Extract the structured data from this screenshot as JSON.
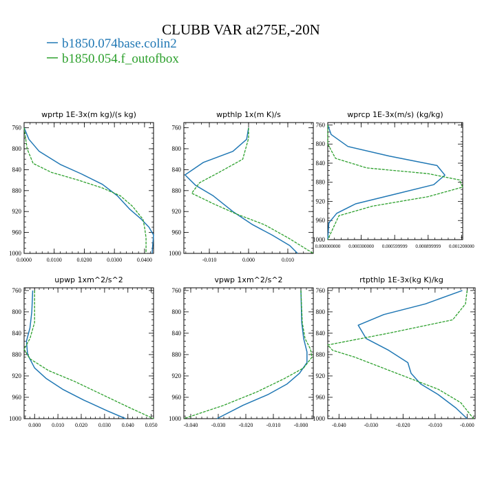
{
  "figure": {
    "title": "CLUBB VAR at275E,-20N",
    "legend_placement": "top-left",
    "legend": [
      {
        "label": "b1850.074base.colin2",
        "color": "#1f77b4"
      },
      {
        "label": "b1850.054.f_outofbox",
        "color": "#2ca02c"
      }
    ]
  },
  "chart_data": [
    {
      "type": "line",
      "title": "wprtp  1E-3x(m kg)/(s kg)",
      "xlim": [
        0.0,
        0.043
      ],
      "ylim": [
        1000,
        750
      ],
      "xticks": [
        0.0,
        0.01,
        0.02,
        0.03,
        0.04
      ],
      "xtick_labels": [
        "0.0000",
        "0.0100",
        "0.0200",
        "0.0300",
        "0.0400"
      ],
      "yticks": [
        760,
        800,
        840,
        880,
        920,
        960,
        1000
      ],
      "grid": false,
      "series": [
        {
          "name": "b1850.074base.colin2",
          "color": "#1f77b4",
          "dashed": false,
          "x": [
            0.0,
            0.0016,
            0.005,
            0.012,
            0.019,
            0.026,
            0.031,
            0.035,
            0.039,
            0.0415,
            0.043,
            0.0425
          ],
          "y": [
            760,
            782,
            805,
            830,
            848,
            868,
            890,
            915,
            935,
            950,
            965,
            1000
          ]
        },
        {
          "name": "b1850.054.f_outofbox",
          "color": "#2ca02c",
          "dashed": true,
          "x": [
            0.0,
            0.001,
            0.003,
            0.009,
            0.018,
            0.026,
            0.032,
            0.036,
            0.0395,
            0.04,
            0.0405,
            0.0405
          ],
          "y": [
            760,
            800,
            828,
            845,
            860,
            875,
            890,
            910,
            935,
            950,
            970,
            1000
          ]
        }
      ]
    },
    {
      "type": "line",
      "title": "wpthlp  1x(m K)/s",
      "xlim": [
        -0.0165,
        0.0165
      ],
      "ylim": [
        1000,
        750
      ],
      "xticks": [
        -0.01,
        0.0,
        0.01
      ],
      "xtick_labels": [
        "-0.010",
        "0.000",
        "0.010"
      ],
      "yticks": [
        760,
        800,
        840,
        880,
        920,
        960,
        1000
      ],
      "grid": false,
      "series": [
        {
          "name": "b1850.074base.colin2",
          "color": "#1f77b4",
          "dashed": false,
          "x": [
            0.0,
            -0.0005,
            -0.004,
            -0.0115,
            -0.0162,
            -0.0135,
            -0.009,
            -0.004,
            0.001,
            0.006,
            0.0105,
            0.0125
          ],
          "y": [
            760,
            782,
            805,
            826,
            850,
            870,
            890,
            920,
            945,
            965,
            985,
            1000
          ]
        },
        {
          "name": "b1850.054.f_outofbox",
          "color": "#2ca02c",
          "dashed": true,
          "x": [
            0.0,
            0.0,
            -0.0015,
            -0.0075,
            -0.0125,
            -0.0145,
            -0.009,
            -0.003,
            0.004,
            0.01,
            0.0165
          ],
          "y": [
            760,
            780,
            820,
            845,
            865,
            885,
            905,
            925,
            945,
            970,
            1000
          ]
        }
      ]
    },
    {
      "type": "line",
      "title": "wprcp  1E-3x(m/s) (kg/kg)",
      "xlim": [
        0.0,
        0.00121
      ],
      "ylim": [
        1000,
        755
      ],
      "xticks": [
        0.0,
        0.0003,
        0.0006,
        0.0009,
        0.0012
      ],
      "xtick_labels": [
        "0.000000000",
        "0.000300000",
        "0.000599999",
        "0.000899999",
        "0.001200000"
      ],
      "yticks": [
        760,
        800,
        840,
        880,
        920,
        960,
        1000
      ],
      "grid": false,
      "series": [
        {
          "name": "b1850.074base.colin2",
          "color": "#1f77b4",
          "dashed": false,
          "x": [
            0.0,
            3e-05,
            0.00018,
            0.00055,
            0.00098,
            0.00105,
            0.00095,
            0.0006,
            0.00025,
            8e-05,
            1e-05,
            0.0
          ],
          "y": [
            760,
            780,
            805,
            825,
            845,
            865,
            885,
            905,
            925,
            945,
            965,
            1000
          ]
        },
        {
          "name": "b1850.054.f_outofbox",
          "color": "#2ca02c",
          "dashed": true,
          "x": [
            0.0,
            0.0,
            7e-05,
            0.00035,
            0.0009,
            0.00118,
            0.00121,
            0.0009,
            0.0004,
            0.0001,
            0.0
          ],
          "y": [
            760,
            800,
            830,
            850,
            862,
            875,
            890,
            910,
            930,
            950,
            1000
          ]
        }
      ]
    },
    {
      "type": "line",
      "title": "upwp  1xm^2/s^2",
      "xlim": [
        -0.0045,
        0.051
      ],
      "ylim": [
        1000,
        755
      ],
      "xticks": [
        0.0,
        0.01,
        0.02,
        0.03,
        0.04,
        0.05
      ],
      "xtick_labels": [
        "0.000",
        "0.010",
        "0.020",
        "0.030",
        "0.040",
        "0.050"
      ],
      "yticks": [
        760,
        800,
        840,
        880,
        920,
        960,
        1000
      ],
      "grid": false,
      "series": [
        {
          "name": "b1850.074base.colin2",
          "color": "#1f77b4",
          "dashed": false,
          "x": [
            -0.0008,
            -0.0012,
            -0.002,
            -0.0035,
            -0.003,
            0.0,
            0.005,
            0.012,
            0.021,
            0.031,
            0.039
          ],
          "y": [
            760,
            800,
            830,
            855,
            880,
            905,
            925,
            945,
            965,
            985,
            1000
          ]
        },
        {
          "name": "b1850.054.f_outofbox",
          "color": "#2ca02c",
          "dashed": true,
          "x": [
            0.0,
            0.0,
            -0.002,
            -0.0045,
            -0.002,
            0.006,
            0.017,
            0.029,
            0.041,
            0.051
          ],
          "y": [
            760,
            820,
            850,
            870,
            888,
            910,
            930,
            955,
            980,
            1000
          ]
        }
      ]
    },
    {
      "type": "line",
      "title": "vpwp  1xm^2/s^2",
      "xlim": [
        -0.0425,
        0.0045
      ],
      "ylim": [
        1000,
        755
      ],
      "xticks": [
        -0.04,
        -0.03,
        -0.02,
        -0.01,
        0.0
      ],
      "xtick_labels": [
        "-0.040",
        "-0.030",
        "-0.020",
        "-0.010",
        "-0.000"
      ],
      "yticks": [
        760,
        800,
        840,
        880,
        920,
        960,
        1000
      ],
      "grid": false,
      "series": [
        {
          "name": "b1850.074base.colin2",
          "color": "#1f77b4",
          "dashed": false,
          "x": [
            0.0,
            0.0003,
            0.001,
            0.0022,
            0.0022,
            -0.0005,
            -0.005,
            -0.012,
            -0.021,
            -0.0305
          ],
          "y": [
            760,
            820,
            850,
            875,
            895,
            915,
            935,
            955,
            975,
            1000
          ]
        },
        {
          "name": "b1850.054.f_outofbox",
          "color": "#2ca02c",
          "dashed": true,
          "x": [
            0.0,
            0.0005,
            0.0015,
            0.0035,
            0.004,
            0.001,
            -0.006,
            -0.016,
            -0.028,
            -0.0425
          ],
          "y": [
            760,
            820,
            850,
            870,
            885,
            905,
            925,
            950,
            975,
            1000
          ]
        }
      ]
    },
    {
      "type": "line",
      "title": "rtpthlp  1E-3x(kg K)/kg",
      "xlim": [
        -0.0435,
        0.0025
      ],
      "ylim": [
        1000,
        755
      ],
      "xticks": [
        -0.04,
        -0.03,
        -0.02,
        -0.01,
        0.0
      ],
      "xtick_labels": [
        "-0.040",
        "-0.030",
        "-0.020",
        "-0.010",
        "-0.000"
      ],
      "yticks": [
        760,
        800,
        840,
        880,
        920,
        960,
        1000
      ],
      "grid": false,
      "series": [
        {
          "name": "b1850.074base.colin2",
          "color": "#1f77b4",
          "dashed": false,
          "x": [
            -0.0015,
            -0.013,
            -0.026,
            -0.034,
            -0.0315,
            -0.0245,
            -0.0185,
            -0.0175,
            -0.0145,
            -0.009,
            -0.0035,
            0.0
          ],
          "y": [
            760,
            785,
            805,
            825,
            850,
            872,
            895,
            915,
            935,
            955,
            980,
            1000
          ]
        },
        {
          "name": "b1850.054.f_outofbox",
          "color": "#2ca02c",
          "dashed": true,
          "x": [
            0.0,
            -0.0005,
            -0.0045,
            -0.0245,
            -0.0435,
            -0.042,
            -0.035,
            -0.022,
            -0.009,
            -0.002,
            0.002
          ],
          "y": [
            760,
            785,
            815,
            840,
            862,
            872,
            885,
            915,
            945,
            970,
            1000
          ]
        }
      ]
    }
  ]
}
